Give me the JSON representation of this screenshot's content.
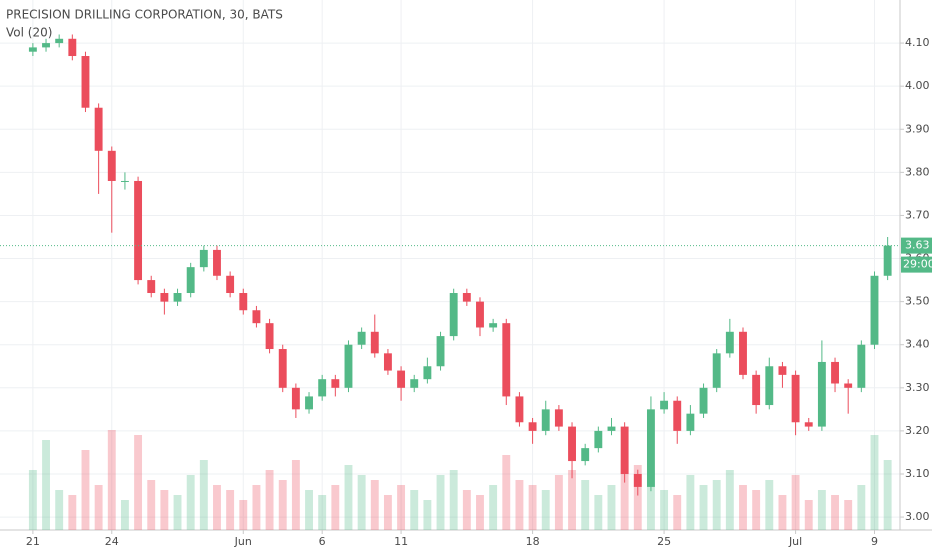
{
  "chart_data": {
    "type": "candlestick",
    "title": "PRECISION DRILLING CORPORATION, 30, BATS",
    "subtitle": "Vol (20)",
    "up_color": "#53b987",
    "down_color": "#eb4d5c",
    "last_price": 3.63,
    "last_price_label": "3.63",
    "countdown": "29:00",
    "x": [
      0,
      0.5,
      1,
      1.5,
      2,
      2.5,
      3,
      3.5,
      4,
      4.5,
      5,
      5.5,
      6,
      6.5,
      7,
      7.5,
      8,
      8.5,
      9,
      9.5,
      10,
      10.5,
      11,
      11.5,
      12,
      12.5,
      13,
      13.5,
      14,
      14.5,
      15,
      15.5,
      16,
      16.5,
      17,
      17.5,
      18,
      18.5,
      19,
      19.5,
      20,
      20.5,
      21,
      21.5,
      22,
      22.5,
      23,
      23.5,
      24,
      24.5,
      25,
      25.5,
      26,
      26.5,
      27,
      27.5,
      28,
      28.5,
      29,
      29.5,
      30,
      30.5,
      31,
      31.5,
      32,
      32.5
    ],
    "open": [
      4.08,
      4.09,
      4.1,
      4.11,
      4.07,
      3.95,
      3.85,
      3.78,
      3.78,
      3.55,
      3.52,
      3.5,
      3.52,
      3.58,
      3.62,
      3.56,
      3.52,
      3.48,
      3.45,
      3.39,
      3.3,
      3.25,
      3.28,
      3.32,
      3.3,
      3.4,
      3.43,
      3.38,
      3.34,
      3.3,
      3.32,
      3.35,
      3.42,
      3.52,
      3.5,
      3.44,
      3.45,
      3.28,
      3.22,
      3.2,
      3.25,
      3.21,
      3.13,
      3.16,
      3.2,
      3.21,
      3.1,
      3.07,
      3.25,
      3.27,
      3.2,
      3.24,
      3.3,
      3.38,
      3.43,
      3.33,
      3.26,
      3.35,
      3.33,
      3.22,
      3.21,
      3.36,
      3.31,
      3.3,
      3.4,
      3.56
    ],
    "high": [
      4.1,
      4.11,
      4.12,
      4.12,
      4.08,
      3.96,
      3.86,
      3.8,
      3.79,
      3.56,
      3.53,
      3.53,
      3.59,
      3.63,
      3.63,
      3.57,
      3.53,
      3.49,
      3.46,
      3.4,
      3.31,
      3.29,
      3.33,
      3.33,
      3.41,
      3.44,
      3.47,
      3.39,
      3.35,
      3.33,
      3.37,
      3.43,
      3.53,
      3.53,
      3.51,
      3.46,
      3.46,
      3.29,
      3.23,
      3.27,
      3.26,
      3.22,
      3.17,
      3.21,
      3.23,
      3.22,
      3.11,
      3.28,
      3.29,
      3.28,
      3.26,
      3.31,
      3.39,
      3.46,
      3.44,
      3.34,
      3.37,
      3.36,
      3.34,
      3.23,
      3.41,
      3.37,
      3.32,
      3.41,
      3.57,
      3.65
    ],
    "low": [
      4.07,
      4.08,
      4.09,
      4.06,
      3.94,
      3.75,
      3.66,
      3.76,
      3.54,
      3.51,
      3.47,
      3.49,
      3.51,
      3.57,
      3.55,
      3.51,
      3.47,
      3.44,
      3.38,
      3.29,
      3.23,
      3.24,
      3.27,
      3.28,
      3.29,
      3.39,
      3.37,
      3.33,
      3.27,
      3.29,
      3.31,
      3.34,
      3.41,
      3.49,
      3.42,
      3.43,
      3.26,
      3.21,
      3.17,
      3.19,
      3.2,
      3.09,
      3.12,
      3.15,
      3.19,
      3.08,
      3.05,
      3.06,
      3.24,
      3.17,
      3.19,
      3.23,
      3.29,
      3.37,
      3.32,
      3.24,
      3.25,
      3.3,
      3.19,
      3.2,
      3.2,
      3.29,
      3.24,
      3.29,
      3.39,
      3.55
    ],
    "close": [
      4.09,
      4.1,
      4.11,
      4.07,
      3.95,
      3.85,
      3.78,
      3.78,
      3.55,
      3.52,
      3.5,
      3.52,
      3.58,
      3.62,
      3.56,
      3.52,
      3.48,
      3.45,
      3.39,
      3.3,
      3.25,
      3.28,
      3.32,
      3.3,
      3.4,
      3.43,
      3.38,
      3.34,
      3.3,
      3.32,
      3.35,
      3.42,
      3.52,
      3.5,
      3.44,
      3.45,
      3.28,
      3.22,
      3.2,
      3.25,
      3.21,
      3.13,
      3.16,
      3.2,
      3.21,
      3.1,
      3.07,
      3.25,
      3.27,
      3.2,
      3.24,
      3.3,
      3.38,
      3.43,
      3.33,
      3.26,
      3.35,
      3.33,
      3.22,
      3.21,
      3.36,
      3.31,
      3.3,
      3.4,
      3.56,
      3.63
    ],
    "volume": [
      60,
      90,
      40,
      35,
      80,
      45,
      100,
      30,
      95,
      50,
      40,
      35,
      55,
      70,
      45,
      40,
      30,
      45,
      60,
      50,
      70,
      40,
      35,
      45,
      65,
      55,
      50,
      35,
      45,
      40,
      30,
      55,
      60,
      40,
      35,
      45,
      75,
      50,
      45,
      40,
      55,
      60,
      50,
      35,
      45,
      70,
      65,
      60,
      40,
      35,
      55,
      45,
      50,
      60,
      45,
      40,
      50,
      35,
      55,
      30,
      40,
      35,
      30,
      45,
      95,
      70
    ],
    "xlim": [
      -1.25,
      32.97
    ],
    "ylim": [
      2.97,
      4.2
    ],
    "xticks": [
      {
        "value": 0,
        "label": "21"
      },
      {
        "value": 3,
        "label": "24"
      },
      {
        "value": 8,
        "label": "Jun"
      },
      {
        "value": 11,
        "label": "6"
      },
      {
        "value": 14,
        "label": "11"
      },
      {
        "value": 19,
        "label": "18"
      },
      {
        "value": 24,
        "label": "25"
      },
      {
        "value": 29,
        "label": "Jul"
      },
      {
        "value": 32,
        "label": "9"
      }
    ],
    "yticks": [
      {
        "value": 3.0,
        "label": "3.00"
      },
      {
        "value": 3.1,
        "label": "3.10"
      },
      {
        "value": 3.2,
        "label": "3.20"
      },
      {
        "value": 3.3,
        "label": "3.30"
      },
      {
        "value": 3.4,
        "label": "3.40"
      },
      {
        "value": 3.5,
        "label": "3.50"
      },
      {
        "value": 3.6,
        "label": "3.60"
      },
      {
        "value": 3.7,
        "label": "3.70"
      },
      {
        "value": 3.8,
        "label": "3.80"
      },
      {
        "value": 3.9,
        "label": "3.90"
      },
      {
        "value": 4.0,
        "label": "4.00"
      },
      {
        "value": 4.1,
        "label": "4.10"
      }
    ],
    "grid": true
  }
}
